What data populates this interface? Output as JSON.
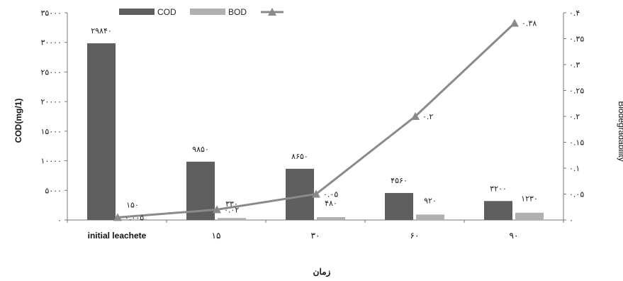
{
  "chart_data": {
    "type": "bar",
    "categories": [
      "initial leachete",
      "۱۵",
      "۳۰",
      "۶۰",
      "۹۰"
    ],
    "series": [
      {
        "name": "COD",
        "type": "bar",
        "axis": "left",
        "color": "#5e5e5e",
        "values": [
          29840,
          9850,
          8650,
          4560,
          3200
        ],
        "labels": [
          "۲۹۸۴۰",
          "۹۸۵۰",
          "۸۶۵۰",
          "۴۵۶۰",
          "۳۲۰۰"
        ]
      },
      {
        "name": "BOD",
        "type": "bar",
        "axis": "left",
        "color": "#b0b0b0",
        "values": [
          150,
          330,
          480,
          920,
          1230
        ],
        "labels": [
          "۱۵۰",
          "۳۳۰",
          "۴۸۰",
          "۹۲۰",
          "۱۲۳۰"
        ]
      },
      {
        "name": "",
        "type": "line",
        "axis": "right",
        "color": "#8a8a8a",
        "values": [
          0.005,
          0.02,
          0.05,
          0.2,
          0.38
        ],
        "labels": [
          "۰.۰۰۵",
          "۰.۰۲",
          "۰.۰۵",
          "۰.۲",
          "۰.۳۸"
        ]
      }
    ],
    "ylabel": "COD(mg/1)",
    "y2label": "Biodegradability",
    "xlabel": "زمان",
    "ylim": [
      0,
      35000
    ],
    "y2lim": [
      0,
      0.4
    ],
    "yticks": [
      0,
      5000,
      10000,
      15000,
      20000,
      25000,
      30000,
      35000
    ],
    "yticklabels": [
      "۰",
      "۵۰۰۰",
      "۱۰۰۰۰",
      "۱۵۰۰۰",
      "۲۰۰۰۰",
      "۲۵۰۰۰",
      "۳۰۰۰۰",
      "۳۵۰۰۰"
    ],
    "y2ticks": [
      0,
      0.05,
      0.1,
      0.15,
      0.2,
      0.25,
      0.3,
      0.35,
      0.4
    ],
    "y2ticklabels": [
      "۰",
      "۰.۰۵",
      "۰.۱",
      "۰.۱۵",
      "۰.۲",
      "۰.۲۵",
      "۰.۳",
      "۰.۳۵",
      "۰.۴"
    ],
    "legend": "top-left",
    "grid": false
  }
}
